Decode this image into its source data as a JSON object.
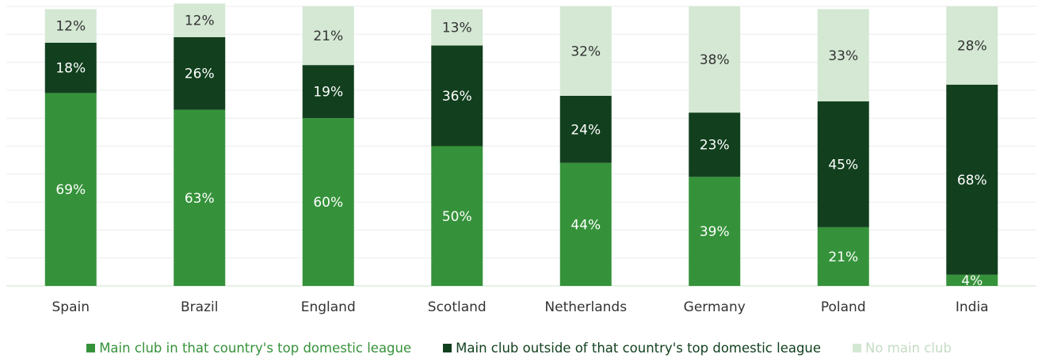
{
  "chart_data": {
    "type": "bar",
    "stacked": true,
    "categories": [
      "Spain",
      "Brazil",
      "England",
      "Scotland",
      "Netherlands",
      "Germany",
      "Poland",
      "India"
    ],
    "series": [
      {
        "name": "Main club in that country's top domestic league",
        "color": "#35923a",
        "label_color": "#ffffff",
        "values": [
          69,
          63,
          60,
          50,
          44,
          39,
          21,
          4
        ]
      },
      {
        "name": "Main club outside of that country's top domestic league",
        "color": "#12401e",
        "label_color": "#ffffff",
        "values": [
          18,
          26,
          19,
          36,
          24,
          23,
          45,
          68
        ]
      },
      {
        "name": "No main club",
        "color": "#d4e8d4",
        "label_color": "#333333",
        "values": [
          12,
          12,
          21,
          13,
          32,
          38,
          33,
          28
        ]
      }
    ],
    "value_suffix": "%",
    "ylim": [
      0,
      100
    ],
    "grid": true,
    "legend_position": "bottom",
    "legend_text_colors": [
      "#35923a",
      "#12401e",
      "#c4dcc4"
    ]
  }
}
